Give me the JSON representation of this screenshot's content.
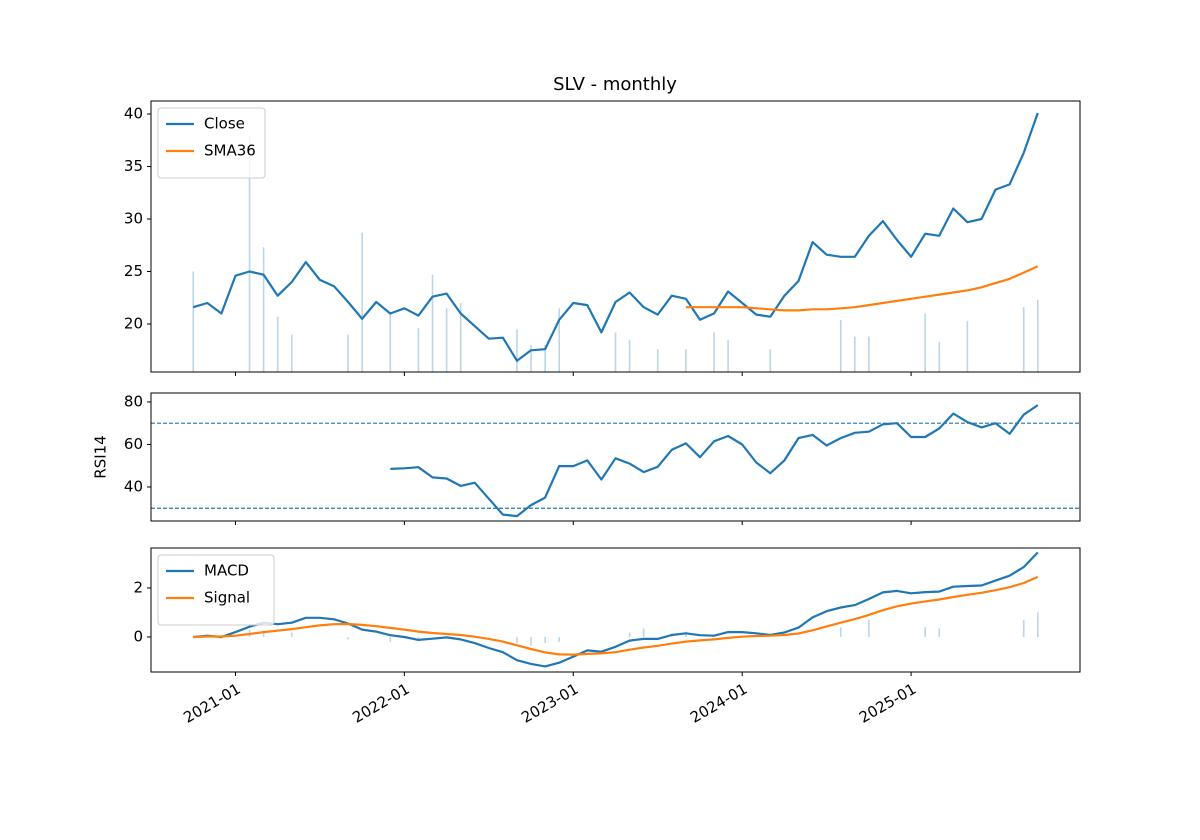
{
  "chart_data": [
    {
      "type": "line",
      "title": "SLV - monthly",
      "x": [
        "2020-09",
        "2020-10",
        "2020-11",
        "2020-12",
        "2021-01",
        "2021-02",
        "2021-03",
        "2021-04",
        "2021-05",
        "2021-06",
        "2021-07",
        "2021-08",
        "2021-09",
        "2021-10",
        "2021-11",
        "2021-12",
        "2022-01",
        "2022-02",
        "2022-03",
        "2022-04",
        "2022-05",
        "2022-06",
        "2022-07",
        "2022-08",
        "2022-09",
        "2022-10",
        "2022-11",
        "2022-12",
        "2023-01",
        "2023-02",
        "2023-03",
        "2023-04",
        "2023-05",
        "2023-06",
        "2023-07",
        "2023-08",
        "2023-09",
        "2023-10",
        "2023-11",
        "2023-12",
        "2024-01",
        "2024-02",
        "2024-03",
        "2024-04",
        "2024-05",
        "2024-06",
        "2024-07",
        "2024-08",
        "2024-09",
        "2024-10",
        "2024-11",
        "2024-12",
        "2025-01",
        "2025-02",
        "2025-03",
        "2025-04",
        "2025-05",
        "2025-06",
        "2025-07",
        "2025-08",
        "2025-09"
      ],
      "xlim": [
        "2020-07",
        "2026-01"
      ],
      "ylim": [
        15.43,
        41.24
      ],
      "yticks": [
        20,
        25,
        30,
        35,
        40
      ],
      "legend": "upper left",
      "series": [
        {
          "name": "Close",
          "color": "#1f77b4",
          "values": [
            21.6,
            22.0,
            21.0,
            24.6,
            25.0,
            24.7,
            22.7,
            24.0,
            25.9,
            24.2,
            23.6,
            22.1,
            20.5,
            22.1,
            21.0,
            21.5,
            20.8,
            22.6,
            22.9,
            21.0,
            19.8,
            18.6,
            18.7,
            16.5,
            17.5,
            17.6,
            20.4,
            22.0,
            21.8,
            19.2,
            22.1,
            23.0,
            21.6,
            20.9,
            22.7,
            22.4,
            20.4,
            21.0,
            23.1,
            22.0,
            20.9,
            20.7,
            22.7,
            24.1,
            27.8,
            26.6,
            26.4,
            26.4,
            28.4,
            29.8,
            28.0,
            26.4,
            28.6,
            28.4,
            31.0,
            29.7,
            30.0,
            32.8,
            33.3,
            36.3,
            40.1
          ]
        },
        {
          "name": "SMA36",
          "color": "#ff7f0e",
          "values": [
            null,
            null,
            null,
            null,
            null,
            null,
            null,
            null,
            null,
            null,
            null,
            null,
            null,
            null,
            null,
            null,
            null,
            null,
            null,
            null,
            null,
            null,
            null,
            null,
            null,
            null,
            null,
            null,
            null,
            null,
            null,
            null,
            null,
            null,
            null,
            21.6,
            21.6,
            21.6,
            21.6,
            21.6,
            21.5,
            21.4,
            21.3,
            21.3,
            21.4,
            21.4,
            21.5,
            21.6,
            21.8,
            22.0,
            22.2,
            22.4,
            22.6,
            22.8,
            23.0,
            23.2,
            23.5,
            23.9,
            24.3,
            24.9,
            25.5
          ]
        }
      ],
      "bars": {
        "color": "#1f77b4",
        "alpha": 0.3,
        "values": [
          25,
          null,
          null,
          null,
          38,
          27.3,
          20.7,
          19,
          null,
          null,
          null,
          19,
          28.7,
          null,
          21,
          null,
          19.6,
          24.7,
          21.5,
          22,
          null,
          null,
          null,
          19.5,
          18,
          18,
          21.5,
          null,
          null,
          null,
          19.2,
          18.5,
          null,
          17.6,
          null,
          17.6,
          null,
          19.2,
          18.5,
          null,
          null,
          17.6,
          null,
          null,
          null,
          null,
          20.4,
          18.8,
          18.8,
          null,
          null,
          null,
          21,
          18.3,
          null,
          20.3,
          null,
          null,
          null,
          21.6,
          22.3
        ]
      }
    },
    {
      "type": "line",
      "ylabel": "RSI14",
      "ylim": [
        24.0,
        84.2
      ],
      "yticks": [
        40,
        60,
        80
      ],
      "hlines": {
        "color": "#1f77b4",
        "values": [
          70,
          30
        ]
      },
      "series": [
        {
          "color": "#1f77b4",
          "values": [
            null,
            null,
            null,
            null,
            null,
            null,
            null,
            null,
            null,
            null,
            null,
            null,
            null,
            null,
            48.5,
            48.8,
            49.3,
            44.5,
            44.0,
            40.5,
            42.0,
            34.5,
            27.0,
            26.3,
            31.5,
            35.0,
            49.8,
            49.8,
            52.5,
            43.5,
            53.5,
            51.0,
            47.0,
            49.5,
            57.5,
            60.5,
            54.0,
            61.5,
            64.0,
            60.0,
            51.5,
            46.5,
            52.5,
            63.0,
            64.5,
            59.5,
            63.0,
            65.5,
            66.0,
            69.5,
            70.0,
            63.5,
            63.5,
            67.5,
            74.5,
            70.5,
            68.0,
            70.0,
            65.0,
            74.0,
            78.5
          ]
        }
      ]
    },
    {
      "type": "line",
      "ylim": [
        -1.43,
        3.63
      ],
      "yticks": [
        0,
        2
      ],
      "xticks": [
        "2021-01",
        "2022-01",
        "2023-01",
        "2024-01",
        "2025-01"
      ],
      "legend": "upper left",
      "series": [
        {
          "name": "MACD",
          "color": "#1f77b4",
          "values": [
            0.0,
            0.05,
            0.0,
            0.2,
            0.42,
            0.58,
            0.52,
            0.58,
            0.78,
            0.78,
            0.72,
            0.55,
            0.3,
            0.22,
            0.07,
            0.0,
            -0.12,
            -0.07,
            -0.02,
            -0.1,
            -0.25,
            -0.45,
            -0.62,
            -0.95,
            -1.1,
            -1.2,
            -1.05,
            -0.8,
            -0.55,
            -0.6,
            -0.4,
            -0.15,
            -0.08,
            -0.08,
            0.08,
            0.15,
            0.07,
            0.05,
            0.2,
            0.2,
            0.15,
            0.08,
            0.18,
            0.38,
            0.8,
            1.05,
            1.2,
            1.3,
            1.55,
            1.82,
            1.88,
            1.78,
            1.83,
            1.85,
            2.05,
            2.08,
            2.1,
            2.3,
            2.5,
            2.85,
            3.45
          ]
        },
        {
          "name": "Signal",
          "color": "#ff7f0e",
          "values": [
            0.0,
            0.02,
            0.02,
            0.05,
            0.12,
            0.2,
            0.26,
            0.32,
            0.4,
            0.47,
            0.52,
            0.53,
            0.49,
            0.44,
            0.37,
            0.3,
            0.22,
            0.16,
            0.12,
            0.08,
            0.01,
            -0.08,
            -0.19,
            -0.34,
            -0.49,
            -0.63,
            -0.71,
            -0.72,
            -0.69,
            -0.67,
            -0.62,
            -0.52,
            -0.43,
            -0.36,
            -0.27,
            -0.19,
            -0.14,
            -0.1,
            -0.04,
            0.01,
            0.04,
            0.05,
            0.08,
            0.14,
            0.27,
            0.43,
            0.58,
            0.73,
            0.9,
            1.09,
            1.25,
            1.36,
            1.45,
            1.53,
            1.63,
            1.72,
            1.8,
            1.91,
            2.03,
            2.2,
            2.45
          ]
        }
      ],
      "bars": {
        "color": "#1f77b4",
        "alpha": 0.3,
        "values": [
          null,
          null,
          null,
          null,
          0.3,
          0.2,
          null,
          0.18,
          null,
          null,
          null,
          -0.1,
          null,
          null,
          -0.2,
          null,
          -0.15,
          null,
          null,
          null,
          null,
          null,
          null,
          -0.25,
          -0.35,
          -0.25,
          -0.2,
          null,
          null,
          null,
          null,
          0.18,
          0.35,
          null,
          0.15,
          0.22,
          null,
          null,
          null,
          null,
          null,
          null,
          null,
          null,
          null,
          null,
          0.4,
          null,
          0.7,
          null,
          null,
          null,
          0.4,
          0.35,
          null,
          null,
          null,
          null,
          null,
          0.7,
          1.0
        ]
      }
    }
  ]
}
